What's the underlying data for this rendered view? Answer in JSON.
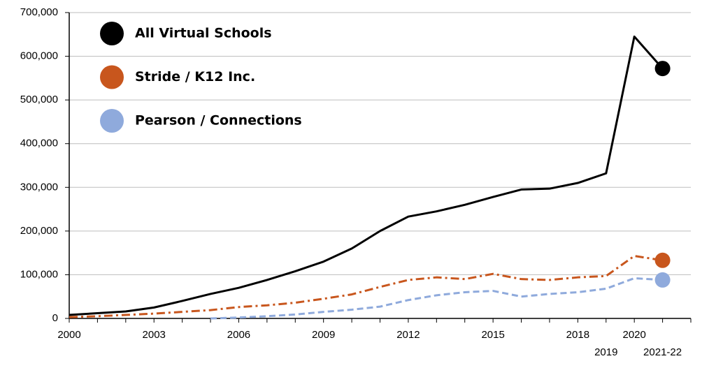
{
  "chart_data": {
    "type": "line",
    "categories": [
      "2000",
      null,
      null,
      "2003",
      null,
      null,
      "2006",
      null,
      null,
      "2009",
      null,
      null,
      "2012",
      null,
      null,
      "2015",
      null,
      null,
      "2018",
      "2019",
      "2020",
      "2021-22"
    ],
    "series": [
      {
        "name": "All Virtual Schools",
        "color": "#000000",
        "line_style": "solid",
        "values": [
          8000,
          12000,
          16000,
          25000,
          40000,
          56000,
          70000,
          88000,
          108000,
          130000,
          160000,
          200000,
          233000,
          245000,
          260000,
          278000,
          295000,
          297000,
          310000,
          332000,
          645000,
          572000
        ]
      },
      {
        "name": "Stride / K12 Inc.",
        "color": "#c8561d",
        "line_style": "dashdot",
        "values": [
          3000,
          5000,
          8000,
          11000,
          15000,
          19000,
          26000,
          30000,
          36000,
          45000,
          55000,
          72000,
          88000,
          94000,
          90000,
          102000,
          90000,
          88000,
          94000,
          97000,
          143000,
          133000
        ]
      },
      {
        "name": "Pearson / Connections",
        "color": "#8faadc",
        "line_style": "dashed",
        "values": [
          null,
          null,
          null,
          null,
          null,
          0,
          2000,
          5000,
          9000,
          15000,
          20000,
          27000,
          42000,
          53000,
          60000,
          63000,
          50000,
          56000,
          60000,
          68000,
          92000,
          88000
        ]
      }
    ],
    "ylim": [
      0,
      700000
    ],
    "yticks": [
      0,
      {
        "value": 100000,
        "label": "100,000"
      },
      {
        "value": 200000,
        "label": "200,000"
      },
      {
        "value": 300000,
        "label": "300,000"
      },
      {
        "value": 400000,
        "label": "400,000"
      },
      {
        "value": 500000,
        "label": "500,000"
      },
      {
        "value": 600000,
        "label": "600,000"
      },
      {
        "value": 700000,
        "label": "700,000"
      }
    ],
    "grid": true,
    "legend": "top-left"
  }
}
